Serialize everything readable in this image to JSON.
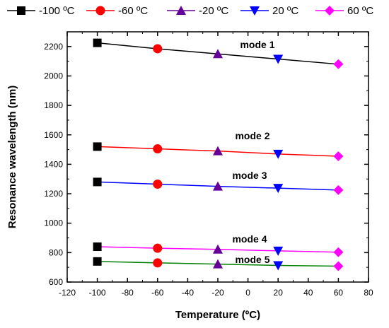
{
  "chart_data": {
    "type": "line",
    "xlabel": "Temperature (ºC)",
    "ylabel": "Resonance wavelength (nm)",
    "xlim": [
      -120,
      80
    ],
    "ylim": [
      600,
      2300
    ],
    "xticks": [
      -120,
      -100,
      -80,
      -60,
      -40,
      -20,
      0,
      20,
      40,
      60,
      80
    ],
    "yticks": [
      600,
      800,
      1000,
      1200,
      1400,
      1600,
      1800,
      2000,
      2200
    ],
    "grid": false,
    "legend_position": "top",
    "legend": [
      {
        "label": "-100 ºC",
        "marker": "square",
        "color": "#000000"
      },
      {
        "label": "-60 ºC",
        "marker": "circle",
        "color": "#ff0000"
      },
      {
        "label": "-20 ºC",
        "marker": "triangle-up",
        "color": "#660099"
      },
      {
        "label": "20 ºC",
        "marker": "triangle-down",
        "color": "#0000ff"
      },
      {
        "label": "60 ºC",
        "marker": "diamond",
        "color": "#ff00ff"
      }
    ],
    "x": [
      -100,
      -60,
      -20,
      20,
      60
    ],
    "series": [
      {
        "name": "mode 1",
        "line_color": "#000000",
        "values": [
          2225,
          2185,
          2150,
          2115,
          2080
        ]
      },
      {
        "name": "mode 2",
        "line_color": "#ff0000",
        "values": [
          1520,
          1505,
          1490,
          1470,
          1455
        ]
      },
      {
        "name": "mode 3",
        "line_color": "#0000ff",
        "values": [
          1280,
          1265,
          1250,
          1238,
          1225
        ]
      },
      {
        "name": "mode 4",
        "line_color": "#ff00ff",
        "values": [
          840,
          830,
          822,
          812,
          803
        ]
      },
      {
        "name": "mode 5",
        "line_color": "#008000",
        "values": [
          740,
          730,
          722,
          713,
          708
        ]
      }
    ]
  }
}
